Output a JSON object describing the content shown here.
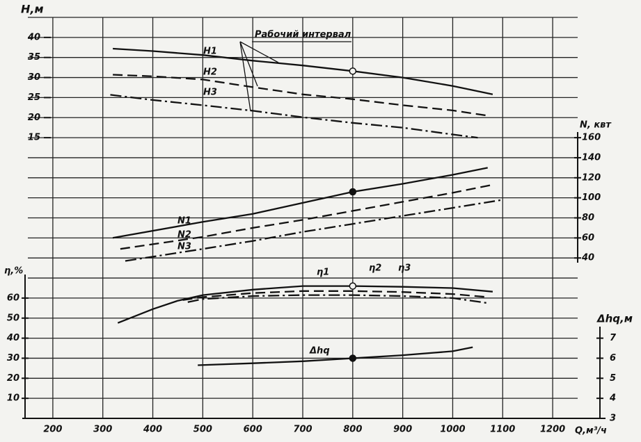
{
  "chart_data": {
    "type": "line",
    "xlabel": "Q,м³/ч",
    "ylabel": "H,м",
    "y2label": "N, квт",
    "y3label": "η,%",
    "y4label": "Δhq,м",
    "annotation": "Рабочий интервал",
    "xlim": [
      150,
      1250
    ],
    "xticks": [
      200,
      300,
      400,
      500,
      600,
      700,
      800,
      900,
      1000,
      1100,
      1200
    ],
    "ylim": [
      -55,
      45
    ],
    "yticks": [
      15,
      20,
      25,
      30,
      35,
      40
    ],
    "y2lim": [
      -120,
      280
    ],
    "y2ticks": [
      40,
      60,
      80,
      100,
      120,
      140,
      160
    ],
    "y3lim": [
      0,
      200
    ],
    "y3ticks": [
      10,
      20,
      30,
      40,
      50,
      60
    ],
    "y4lim": [
      3,
      23
    ],
    "y4ticks": [
      3,
      4,
      5,
      6,
      7
    ],
    "grid": true,
    "design_point": 800,
    "series": [
      {
        "name": "H1",
        "axis": "y",
        "dash": "solid",
        "marker": "open",
        "color": "#111",
        "x": [
          320,
          400,
          500,
          600,
          700,
          800,
          900,
          1000,
          1080
        ],
        "values": [
          37.2,
          36.6,
          35.6,
          34.2,
          33.0,
          31.6,
          30.0,
          27.9,
          25.8
        ]
      },
      {
        "name": "H2",
        "axis": "y",
        "dash": "dashed",
        "color": "#111",
        "x": [
          320,
          400,
          500,
          600,
          700,
          800,
          900,
          1000,
          1070
        ],
        "values": [
          30.7,
          30.3,
          29.5,
          27.6,
          25.8,
          24.6,
          23.1,
          21.8,
          20.5
        ]
      },
      {
        "name": "H3",
        "axis": "y",
        "dash": "dashdot",
        "color": "#111",
        "x": [
          315,
          400,
          500,
          600,
          700,
          800,
          900,
          1000,
          1050
        ],
        "values": [
          25.7,
          24.4,
          23.1,
          21.7,
          20.1,
          18.7,
          17.5,
          15.8,
          15.0
        ]
      },
      {
        "name": "N1",
        "axis": "y2",
        "dash": "solid",
        "marker": "filled",
        "color": "#111",
        "x": [
          320,
          500,
          600,
          700,
          800,
          900,
          1000,
          1070
        ],
        "values": [
          60,
          76,
          84,
          95,
          106,
          114,
          123,
          130
        ]
      },
      {
        "name": "N2",
        "axis": "y2",
        "dash": "dashed",
        "color": "#111",
        "x": [
          335,
          500,
          600,
          700,
          800,
          900,
          1000,
          1080
        ],
        "values": [
          49,
          61,
          70,
          78,
          87,
          96,
          105,
          113
        ]
      },
      {
        "name": "N3",
        "axis": "y2",
        "dash": "dashdot",
        "color": "#111",
        "x": [
          345,
          500,
          600,
          700,
          800,
          900,
          1000,
          1100
        ],
        "values": [
          37,
          49,
          57,
          66,
          74,
          82,
          90,
          98
        ]
      },
      {
        "name": "η1",
        "axis": "y3",
        "dash": "solid",
        "marker": "open",
        "color": "#111",
        "x": [
          330,
          400,
          450,
          500,
          600,
          700,
          800,
          900,
          1000,
          1080
        ],
        "values": [
          47.6,
          54.5,
          58.7,
          61.5,
          64.2,
          66,
          66,
          65.6,
          65,
          63.2
        ]
      },
      {
        "name": "η2",
        "axis": "y3",
        "dash": "dashed",
        "color": "#111",
        "x": [
          460,
          500,
          600,
          700,
          800,
          900,
          1000,
          1070
        ],
        "values": [
          59,
          60.5,
          62.5,
          63.5,
          63.5,
          63,
          62,
          60.5
        ]
      },
      {
        "name": "η3",
        "axis": "y3",
        "dash": "dashdot",
        "color": "#111",
        "x": [
          470,
          500,
          600,
          700,
          800,
          900,
          1000,
          1070
        ],
        "values": [
          58,
          59.5,
          61,
          61.5,
          61.5,
          61,
          60,
          57.5
        ]
      },
      {
        "name": "Δhq",
        "axis": "y4",
        "dash": "solid",
        "marker": "filled",
        "color": "#111",
        "x": [
          490,
          600,
          700,
          800,
          900,
          1000,
          1040
        ],
        "values": [
          5.65,
          5.75,
          5.85,
          6.0,
          6.15,
          6.35,
          6.55
        ]
      }
    ]
  }
}
